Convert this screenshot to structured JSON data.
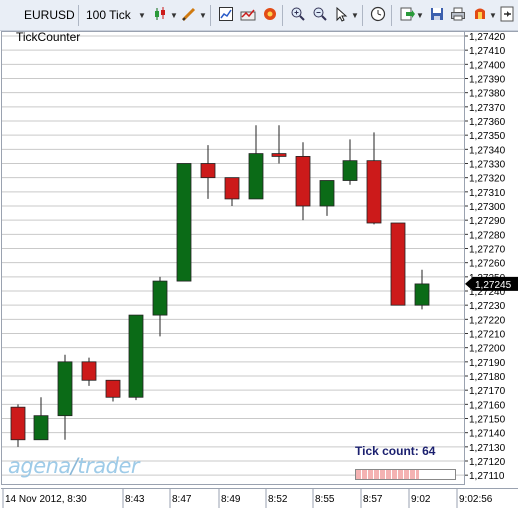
{
  "toolbar": {
    "instrument": "EURUSD",
    "timeframe": "100 Tick",
    "icons": [
      "candlestick-style-icon",
      "drawing-pen-icon",
      "chart-properties-icon",
      "indicators-icon",
      "strategies-icon",
      "zoom-in-icon",
      "zoom-out-icon",
      "cursor-select-icon",
      "clock-icon",
      "export-icon",
      "save-icon",
      "print-icon",
      "tools-icon",
      "pin-icon"
    ]
  },
  "chart": {
    "indicator_label": "TickCounter",
    "tick_count_label": "Tick count: 64",
    "tick_progress": 0.64,
    "logo_text": "agena",
    "logo_text2": "trader",
    "current_price": "1,27245"
  },
  "colors": {
    "up": "#0b6b17",
    "down": "#cc1a1a",
    "grid": "#c9c9c9",
    "toolbar": "#e9eef6"
  },
  "chart_data": {
    "type": "candlestick",
    "y_ticks": [
      "1,27420",
      "1,27410",
      "1,27400",
      "1,27390",
      "1,27380",
      "1,27370",
      "1,27360",
      "1,27350",
      "1,27340",
      "1,27330",
      "1,27320",
      "1,27310",
      "1,27300",
      "1,27290",
      "1,27280",
      "1,27270",
      "1,27260",
      "1,27250",
      "1,27240",
      "1,27230",
      "1,27220",
      "1,27210",
      "1,27200",
      "1,27190",
      "1,27180",
      "1,27170",
      "1,27160",
      "1,27150",
      "1,27140",
      "1,27130",
      "1,27120",
      "1,27110"
    ],
    "x_labels": [
      "14 Nov 2012, 8:30",
      "8:43",
      "8:47",
      "8:49",
      "8:52",
      "8:55",
      "8:57",
      "9:02",
      "9:02:56"
    ],
    "ylim": [
      1.271,
      1.2742
    ],
    "candles": [
      {
        "o": 1.27158,
        "h": 1.2716,
        "l": 1.2713,
        "c": 1.27135
      },
      {
        "o": 1.27135,
        "h": 1.27165,
        "l": 1.27135,
        "c": 1.27152
      },
      {
        "o": 1.27152,
        "h": 1.27195,
        "l": 1.27135,
        "c": 1.2719
      },
      {
        "o": 1.2719,
        "h": 1.27193,
        "l": 1.27173,
        "c": 1.27177
      },
      {
        "o": 1.27177,
        "h": 1.27177,
        "l": 1.27162,
        "c": 1.27165
      },
      {
        "o": 1.27165,
        "h": 1.27222,
        "l": 1.27163,
        "c": 1.27223
      },
      {
        "o": 1.27223,
        "h": 1.2725,
        "l": 1.27208,
        "c": 1.27247
      },
      {
        "o": 1.27247,
        "h": 1.2733,
        "l": 1.27247,
        "c": 1.2733
      },
      {
        "o": 1.2733,
        "h": 1.27343,
        "l": 1.27305,
        "c": 1.2732
      },
      {
        "o": 1.2732,
        "h": 1.2732,
        "l": 1.273,
        "c": 1.27305
      },
      {
        "o": 1.27305,
        "h": 1.27357,
        "l": 1.27305,
        "c": 1.27337
      },
      {
        "o": 1.27337,
        "h": 1.27357,
        "l": 1.2733,
        "c": 1.27335
      },
      {
        "o": 1.27335,
        "h": 1.27345,
        "l": 1.2729,
        "c": 1.273
      },
      {
        "o": 1.273,
        "h": 1.27318,
        "l": 1.27293,
        "c": 1.27318
      },
      {
        "o": 1.27318,
        "h": 1.27347,
        "l": 1.27315,
        "c": 1.27332
      },
      {
        "o": 1.27332,
        "h": 1.27352,
        "l": 1.27287,
        "c": 1.27288
      },
      {
        "o": 1.27288,
        "h": 1.27288,
        "l": 1.2723,
        "c": 1.2723
      },
      {
        "o": 1.2723,
        "h": 1.27255,
        "l": 1.27227,
        "c": 1.27245
      }
    ]
  }
}
